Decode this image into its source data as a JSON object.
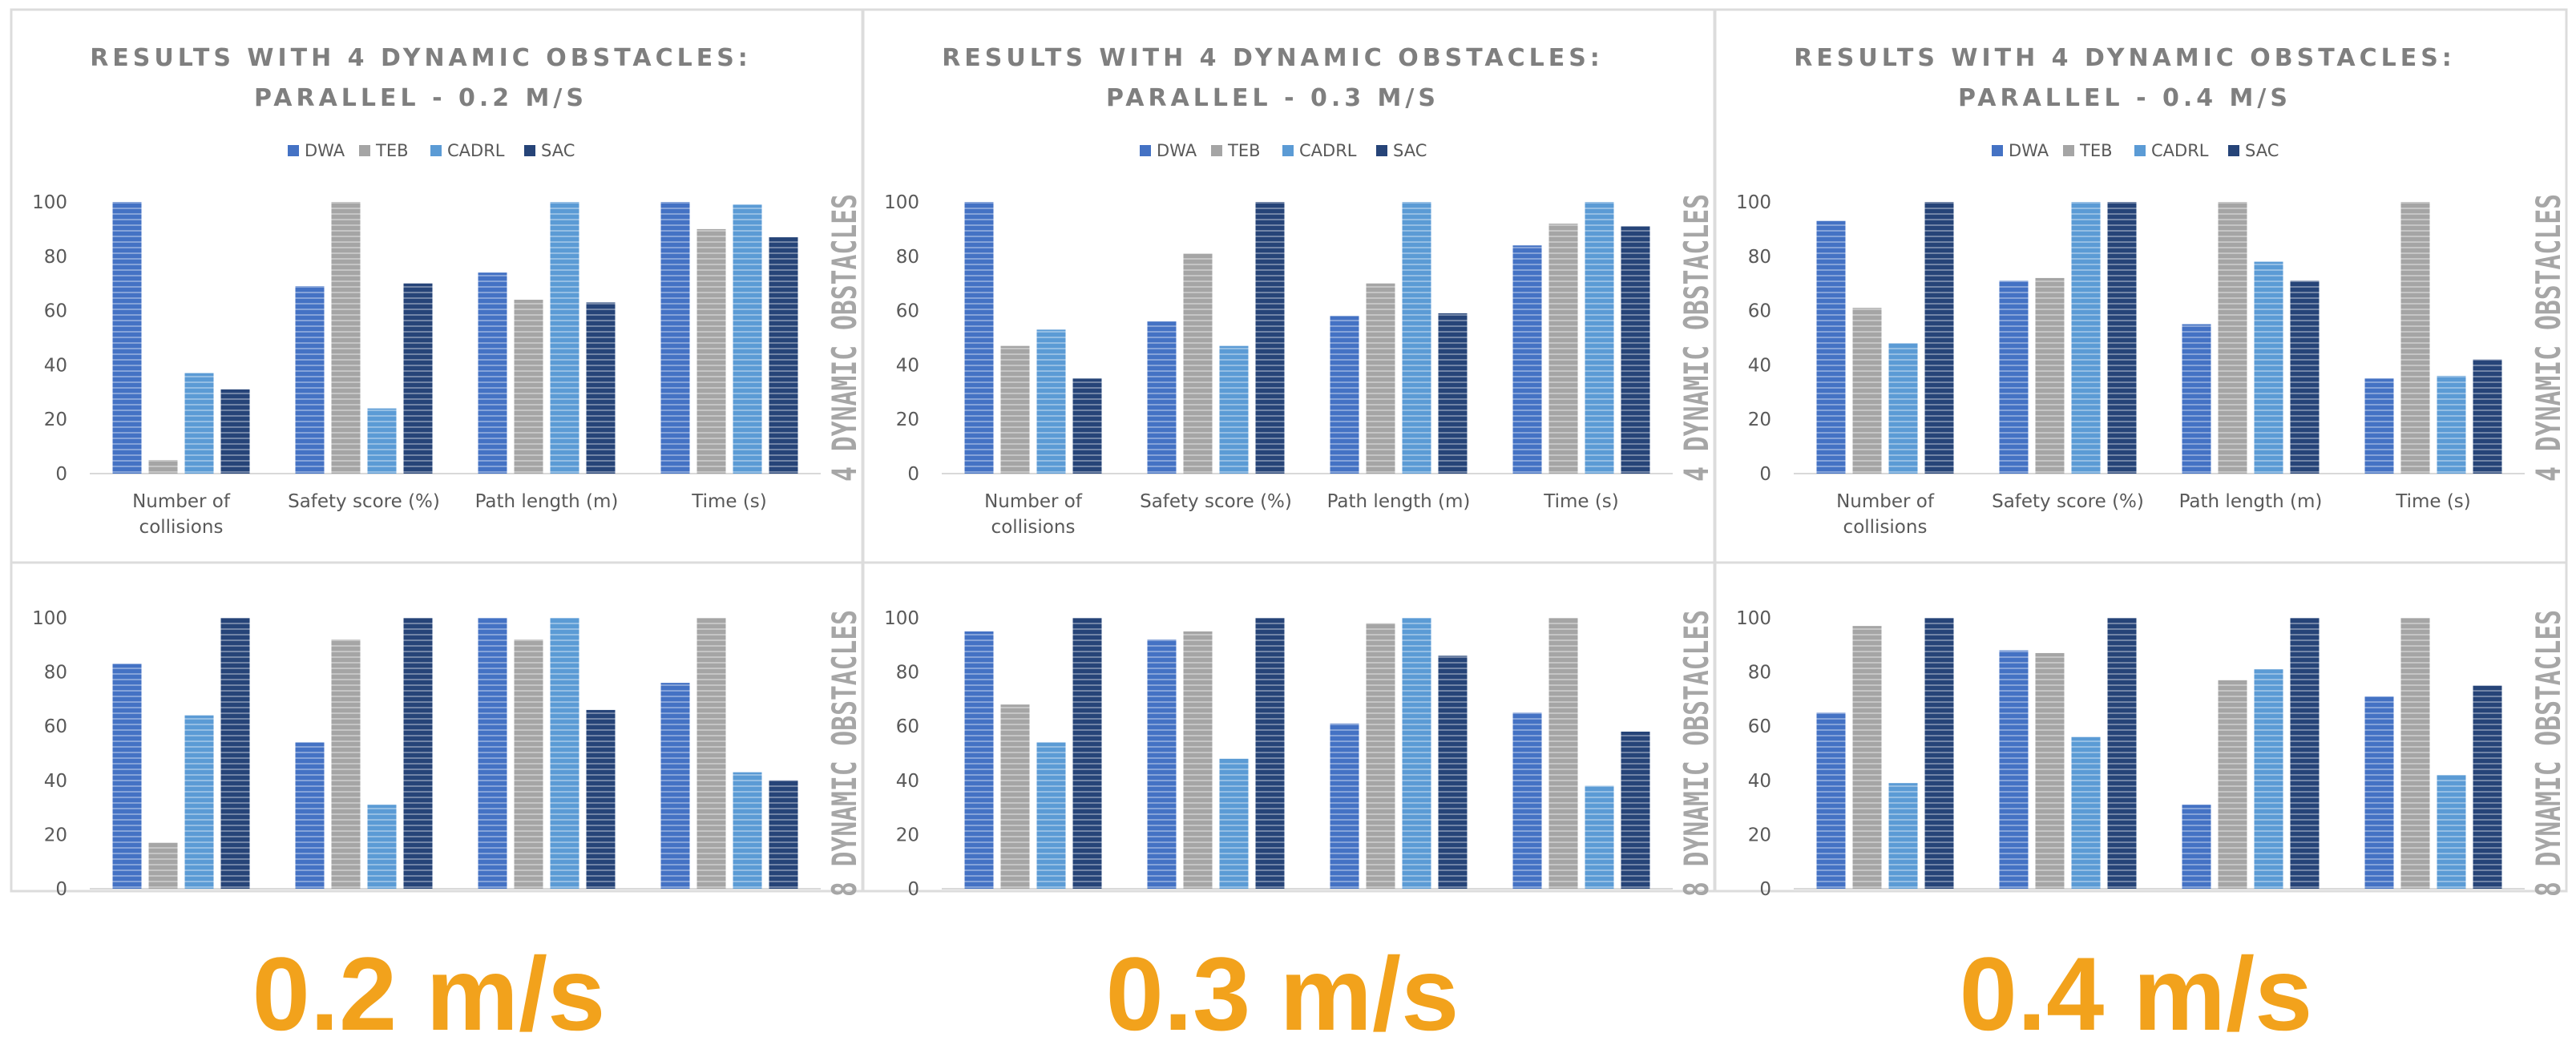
{
  "chart_data": [
    {
      "type": "bar",
      "row": "top",
      "speed": "0.2",
      "title_lines": [
        "RESULTS WITH 4 DYNAMIC OBSTACLES:",
        "PARALLEL - 0.2 M/S"
      ],
      "side_label": "4 DYNAMIC OBSTACLES",
      "categories": [
        "Number of collisions",
        "Safety score (%)",
        "Path length (m)",
        "Time (s)"
      ],
      "series": [
        {
          "name": "DWA",
          "values": [
            100,
            69,
            74,
            100
          ]
        },
        {
          "name": "TEB",
          "values": [
            5,
            100,
            64,
            90
          ]
        },
        {
          "name": "CADRL",
          "values": [
            37,
            24,
            100,
            99
          ]
        },
        {
          "name": "SAC",
          "values": [
            31,
            70,
            63,
            87
          ]
        }
      ],
      "ylim": [
        0,
        100
      ],
      "yticks": [
        0,
        20,
        40,
        60,
        80,
        100
      ]
    },
    {
      "type": "bar",
      "row": "top",
      "speed": "0.3",
      "title_lines": [
        "RESULTS WITH 4 DYNAMIC OBSTACLES:",
        "PARALLEL - 0.3 M/S"
      ],
      "side_label": "4 DYNAMIC OBSTACLES",
      "categories": [
        "Number of collisions",
        "Safety score (%)",
        "Path length (m)",
        "Time (s)"
      ],
      "series": [
        {
          "name": "DWA",
          "values": [
            100,
            56,
            58,
            84
          ]
        },
        {
          "name": "TEB",
          "values": [
            47,
            81,
            70,
            92
          ]
        },
        {
          "name": "CADRL",
          "values": [
            53,
            47,
            100,
            100
          ]
        },
        {
          "name": "SAC",
          "values": [
            35,
            100,
            59,
            91
          ]
        }
      ],
      "ylim": [
        0,
        100
      ],
      "yticks": [
        0,
        20,
        40,
        60,
        80,
        100
      ]
    },
    {
      "type": "bar",
      "row": "top",
      "speed": "0.4",
      "title_lines": [
        "RESULTS WITH 4 DYNAMIC OBSTACLES:",
        "PARALLEL - 0.4 M/S"
      ],
      "side_label": "4 DYNAMIC OBSTACLES",
      "categories": [
        "Number of collisions",
        "Safety score (%)",
        "Path length (m)",
        "Time (s)"
      ],
      "series": [
        {
          "name": "DWA",
          "values": [
            93,
            71,
            55,
            35
          ]
        },
        {
          "name": "TEB",
          "values": [
            61,
            72,
            100,
            100
          ]
        },
        {
          "name": "CADRL",
          "values": [
            48,
            100,
            78,
            36
          ]
        },
        {
          "name": "SAC",
          "values": [
            100,
            100,
            71,
            42
          ]
        }
      ],
      "ylim": [
        0,
        100
      ],
      "yticks": [
        0,
        20,
        40,
        60,
        80,
        100
      ]
    },
    {
      "type": "bar",
      "row": "bottom",
      "speed": "0.2",
      "side_label": "8 DYNAMIC OBSTACLES",
      "series": [
        {
          "name": "DWA",
          "values": [
            83,
            54,
            100,
            76
          ]
        },
        {
          "name": "TEB",
          "values": [
            17,
            92,
            92,
            100
          ]
        },
        {
          "name": "CADRL",
          "values": [
            64,
            31,
            100,
            43
          ]
        },
        {
          "name": "SAC",
          "values": [
            100,
            100,
            66,
            40
          ]
        }
      ],
      "ylim": [
        0,
        100
      ],
      "yticks": [
        0,
        20,
        40,
        60,
        80,
        100
      ]
    },
    {
      "type": "bar",
      "row": "bottom",
      "speed": "0.3",
      "side_label": "8 DYNAMIC OBSTACLES",
      "series": [
        {
          "name": "DWA",
          "values": [
            95,
            92,
            61,
            65
          ]
        },
        {
          "name": "TEB",
          "values": [
            68,
            95,
            98,
            100
          ]
        },
        {
          "name": "CADRL",
          "values": [
            54,
            48,
            100,
            38
          ]
        },
        {
          "name": "SAC",
          "values": [
            100,
            100,
            86,
            58
          ]
        }
      ],
      "ylim": [
        0,
        100
      ],
      "yticks": [
        0,
        20,
        40,
        60,
        80,
        100
      ]
    },
    {
      "type": "bar",
      "row": "bottom",
      "speed": "0.4",
      "side_label": "8 DYNAMIC OBSTACLES",
      "series": [
        {
          "name": "DWA",
          "values": [
            65,
            88,
            31,
            71
          ]
        },
        {
          "name": "TEB",
          "values": [
            97,
            87,
            77,
            100
          ]
        },
        {
          "name": "CADRL",
          "values": [
            39,
            56,
            81,
            42
          ]
        },
        {
          "name": "SAC",
          "values": [
            100,
            100,
            100,
            75
          ]
        }
      ],
      "ylim": [
        0,
        100
      ],
      "yticks": [
        0,
        20,
        40,
        60,
        80,
        100
      ]
    }
  ],
  "speed_labels": [
    "0.2 m/s",
    "0.3 m/s",
    "0.4 m/s"
  ],
  "colors": {
    "DWA": "#4472c4",
    "TEB": "#a5a5a5",
    "CADRL": "#5b9bd5",
    "SAC": "#264478",
    "axis": "#d9d9d9",
    "title": "#7f7f7f",
    "side_label": "#a6a6a6",
    "speed_label": "#f2a21c"
  }
}
